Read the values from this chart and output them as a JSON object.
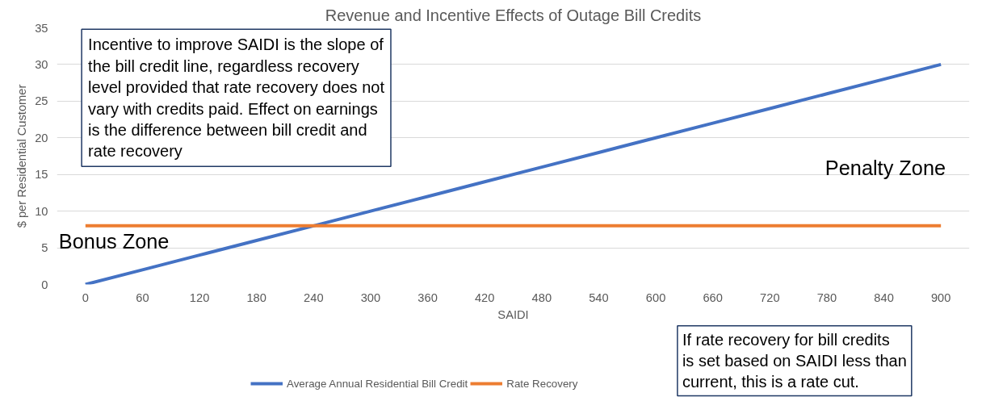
{
  "chart_data": {
    "type": "line",
    "title": "Revenue and Incentive Effects of Outage Bill Credits",
    "xlabel": "SAIDI",
    "ylabel": "$ per Residential Customer",
    "x": [
      0,
      60,
      120,
      180,
      240,
      300,
      360,
      420,
      480,
      540,
      600,
      660,
      720,
      780,
      840,
      900
    ],
    "series": [
      {
        "name": "Average Annual Residential Bill Credit",
        "color": "#4472c4",
        "values": [
          0,
          2,
          4,
          6,
          8,
          10,
          12,
          14,
          16,
          18,
          20,
          22,
          24,
          26,
          28,
          30
        ]
      },
      {
        "name": "Rate Recovery",
        "color": "#ed7d31",
        "values": [
          8,
          8,
          8,
          8,
          8,
          8,
          8,
          8,
          8,
          8,
          8,
          8,
          8,
          8,
          8,
          8
        ]
      }
    ],
    "xlim": [
      -30,
      930
    ],
    "ylim": [
      0,
      35
    ],
    "xticks": [
      0,
      60,
      120,
      180,
      240,
      300,
      360,
      420,
      480,
      540,
      600,
      660,
      720,
      780,
      840,
      900
    ],
    "yticks": [
      0,
      5,
      10,
      15,
      20,
      25,
      30,
      35
    ],
    "grid": "y",
    "legend": "bottom",
    "marker": "none",
    "line_style": "solid",
    "annotations": [
      "Incentive to improve SAIDI is the slope of the bill credit line, regardless recovery level provided that rate recovery does not vary with credits paid. Effect on earnings is the difference between bill credit and rate recovery",
      "Penalty Zone",
      "Bonus Zone",
      "If rate recovery for bill credits is set based on SAIDI less than current, this is a rate cut."
    ]
  }
}
